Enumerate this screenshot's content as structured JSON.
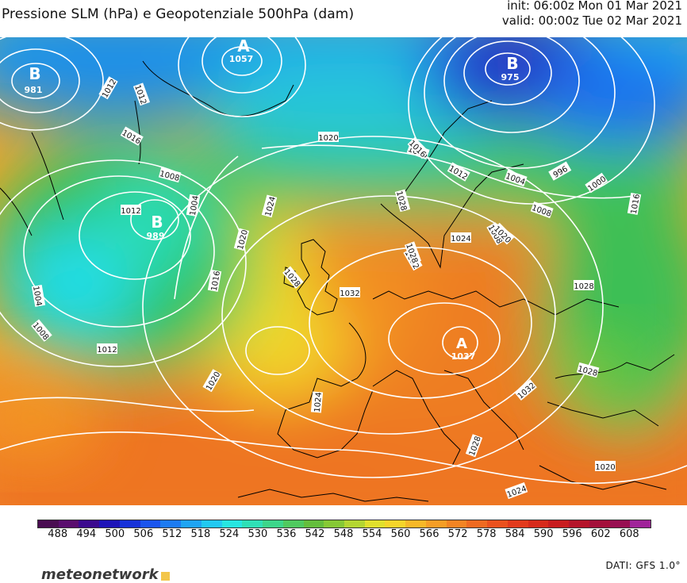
{
  "header": {
    "title": "Pressione SLM (hPa) e Geopotenziale 500hPa (dam)",
    "init": "init: 06:00z Mon 01 Mar 2021",
    "valid": "valid: 00:00z Tue 02 Mar 2021"
  },
  "map": {
    "isobar_labels": [
      "1012",
      "1012",
      "1016",
      "1020",
      "1020",
      "1024",
      "1024",
      "1028",
      "1028",
      "1032",
      "1032",
      "1020",
      "1024",
      "1028",
      "1016",
      "1016",
      "1004",
      "1008",
      "1000",
      "996",
      "1004",
      "1008",
      "1012",
      "1016",
      "1020",
      "1012",
      "1008",
      "1004",
      "1004",
      "1008",
      "1012",
      "1016",
      "1020",
      "1024",
      "1028",
      "1028",
      "1028",
      "1024",
      "1020",
      "1032",
      "1028"
    ],
    "centers": [
      {
        "type": "B",
        "value": "981"
      },
      {
        "type": "A",
        "value": "1057"
      },
      {
        "type": "B",
        "value": "975"
      },
      {
        "type": "B",
        "value": "989"
      },
      {
        "type": "A",
        "value": "1037"
      }
    ]
  },
  "legend": {
    "ticks": [
      "488",
      "494",
      "500",
      "506",
      "512",
      "518",
      "524",
      "530",
      "536",
      "542",
      "548",
      "554",
      "560",
      "566",
      "572",
      "578",
      "584",
      "590",
      "596",
      "602",
      "608"
    ],
    "colors": [
      "#4a0d52",
      "#5a0e6e",
      "#3b0a8e",
      "#1e14b8",
      "#1732d9",
      "#1a55ee",
      "#1c7bf2",
      "#1fa4f3",
      "#22c9f2",
      "#27e6e1",
      "#2fe0b6",
      "#3cd68a",
      "#4fca5f",
      "#64be3c",
      "#86c935",
      "#b4d631",
      "#e1e02c",
      "#f6d52a",
      "#f7b828",
      "#f69e26",
      "#f38423",
      "#ef6a21",
      "#ea511e",
      "#e23a1c",
      "#d72a1b",
      "#c81c1f",
      "#b5142a",
      "#a40f3a",
      "#980f52",
      "#a0249a"
    ]
  },
  "footer": {
    "brand_name": "meteonetwork",
    "source": "DATI: GFS 1.0°"
  }
}
